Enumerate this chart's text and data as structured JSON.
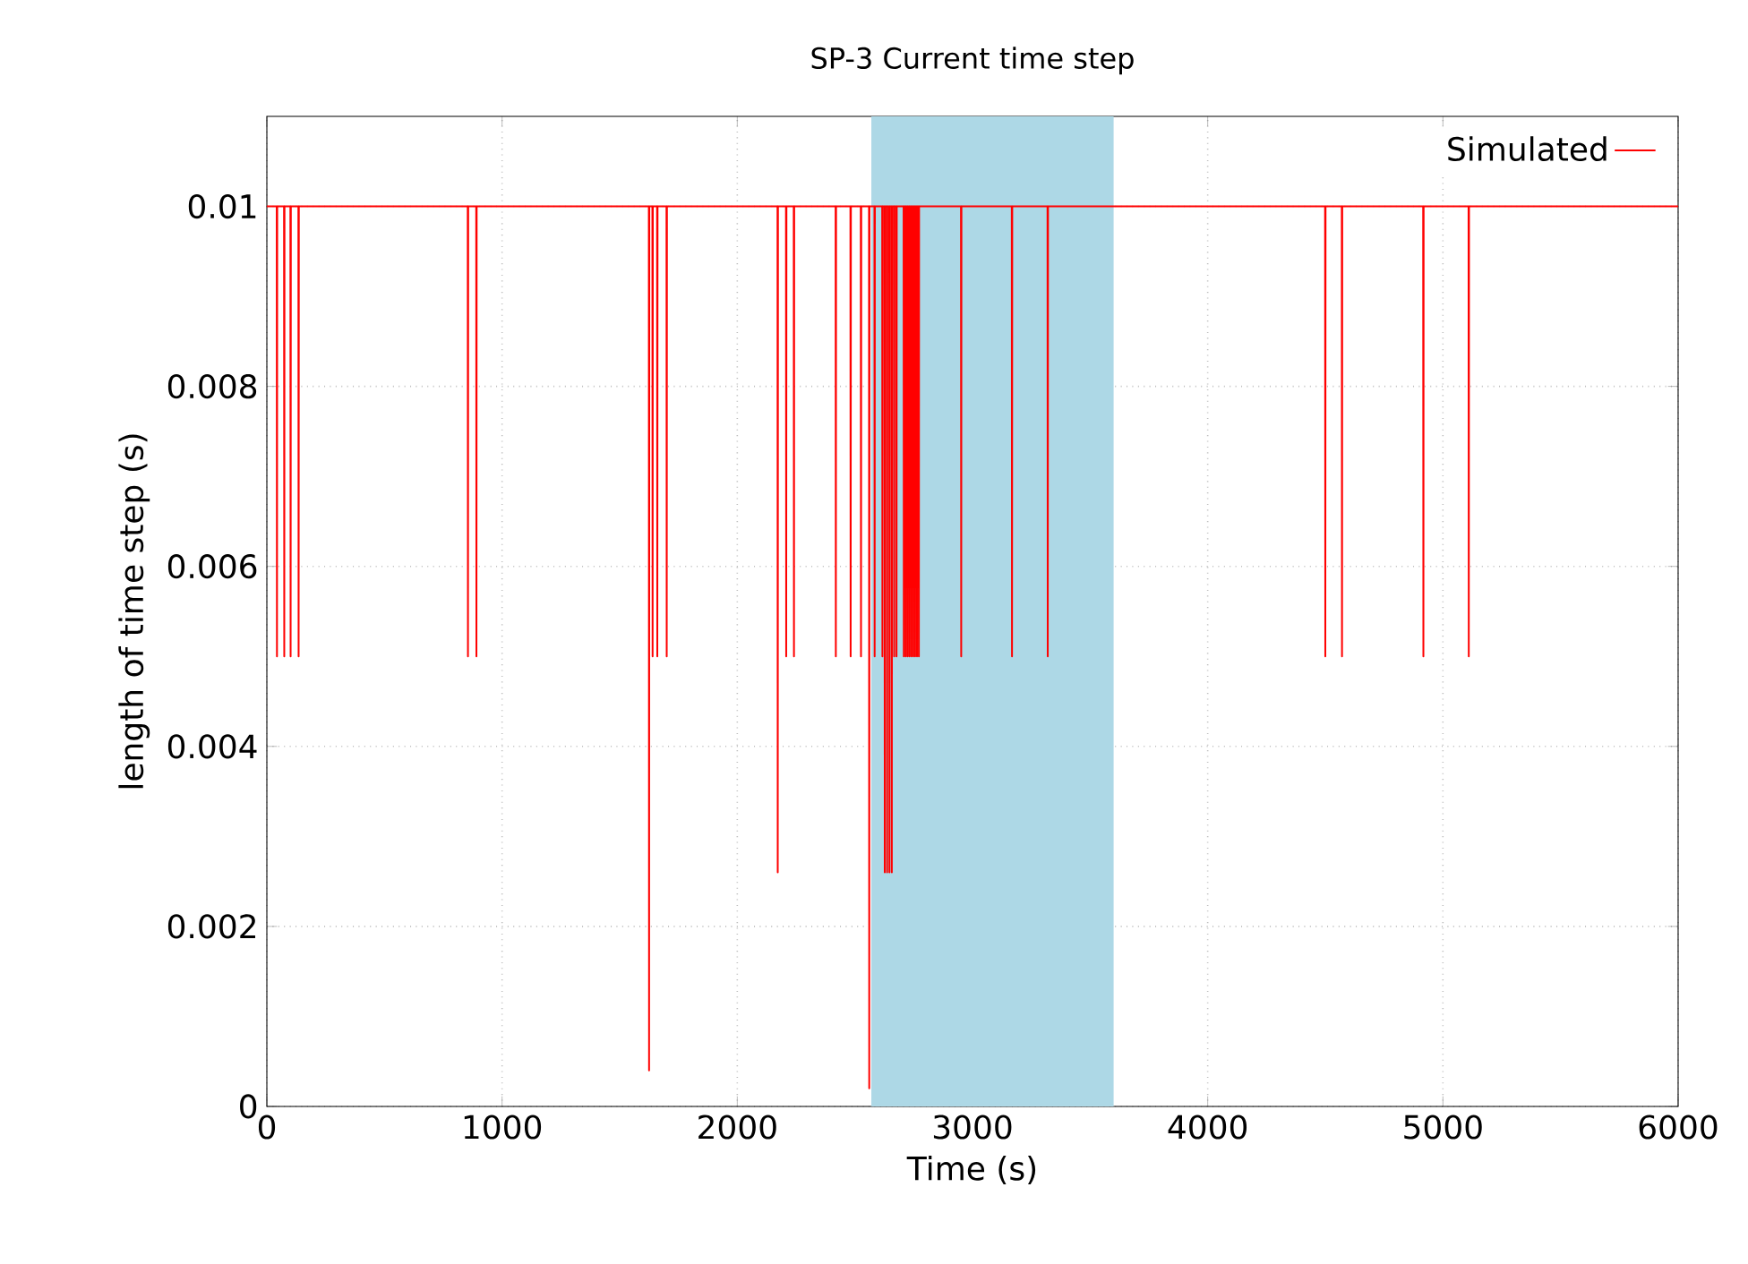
{
  "chart_data": {
    "type": "line",
    "title": "SP-3 Current time step",
    "xlabel": "Time (s)",
    "ylabel": "length of time step (s)",
    "xlim": [
      0,
      6000
    ],
    "ylim": [
      0,
      0.011
    ],
    "xticks": [
      0,
      1000,
      2000,
      3000,
      4000,
      5000,
      6000
    ],
    "yticks": [
      0,
      0.002,
      0.004,
      0.006,
      0.008,
      0.01
    ],
    "grid": true,
    "legend": "top right",
    "marker": "none",
    "line_style": "solid",
    "bands": [
      {
        "axis": "x",
        "from": 2570,
        "to": 3600,
        "color": "#add8e6"
      }
    ],
    "series": [
      {
        "name": "Simulated",
        "color": "#ff0000",
        "x": [
          0,
          42,
          43,
          44,
          73,
          74,
          75,
          100,
          101,
          102,
          134,
          135,
          136,
          854,
          855,
          856,
          890,
          891,
          892,
          1624,
          1625,
          1626,
          1639,
          1640,
          1641,
          1659,
          1660,
          1661,
          1699,
          1700,
          1701,
          2171,
          2172,
          2173,
          2207,
          2208,
          2209,
          2240,
          2241,
          2242,
          2418,
          2419,
          2420,
          2481,
          2482,
          2483,
          2525,
          2526,
          2527,
          2560,
          2561,
          2562,
          2583,
          2584,
          2585,
          2616,
          2617,
          2618,
          2626,
          2627,
          2628,
          2636,
          2637,
          2638,
          2646,
          2647,
          2648,
          2656,
          2657,
          2658,
          2666,
          2667,
          2668,
          2676,
          2677,
          2678,
          2707,
          2708,
          2709,
          2715,
          2716,
          2717,
          2723,
          2724,
          2725,
          2731,
          2732,
          2733,
          2739,
          2740,
          2741,
          2747,
          2748,
          2749,
          2755,
          2756,
          2757,
          2763,
          2764,
          2765,
          2771,
          2772,
          2773,
          2951,
          2952,
          2953,
          3167,
          3168,
          3169,
          3319,
          3320,
          3321,
          4499,
          4500,
          4501,
          4570,
          4571,
          4572,
          4916,
          4917,
          4918,
          5109,
          5110,
          5111,
          6000
        ],
        "values": [
          0.01,
          0.01,
          0.005,
          0.01,
          0.01,
          0.005,
          0.01,
          0.01,
          0.005,
          0.01,
          0.01,
          0.005,
          0.01,
          0.01,
          0.005,
          0.01,
          0.01,
          0.005,
          0.01,
          0.01,
          0.0004,
          0.01,
          0.01,
          0.005,
          0.01,
          0.01,
          0.005,
          0.01,
          0.01,
          0.005,
          0.01,
          0.01,
          0.0026,
          0.01,
          0.01,
          0.005,
          0.01,
          0.01,
          0.005,
          0.01,
          0.01,
          0.005,
          0.01,
          0.01,
          0.005,
          0.01,
          0.01,
          0.005,
          0.01,
          0.01,
          0.0002,
          0.01,
          0.01,
          0.005,
          0.01,
          0.01,
          0.005,
          0.01,
          0.01,
          0.0026,
          0.01,
          0.01,
          0.0026,
          0.01,
          0.01,
          0.0026,
          0.01,
          0.01,
          0.0026,
          0.01,
          0.01,
          0.005,
          0.01,
          0.01,
          0.005,
          0.01,
          0.01,
          0.005,
          0.01,
          0.01,
          0.005,
          0.01,
          0.01,
          0.005,
          0.01,
          0.01,
          0.005,
          0.01,
          0.01,
          0.005,
          0.01,
          0.01,
          0.005,
          0.01,
          0.01,
          0.005,
          0.01,
          0.01,
          0.005,
          0.01,
          0.01,
          0.005,
          0.01,
          0.01,
          0.005,
          0.01,
          0.01,
          0.005,
          0.01,
          0.01,
          0.005,
          0.01,
          0.01,
          0.005,
          0.01,
          0.01,
          0.005,
          0.01,
          0.01,
          0.005,
          0.01,
          0.01,
          0.005,
          0.01,
          0.01
        ]
      }
    ]
  }
}
